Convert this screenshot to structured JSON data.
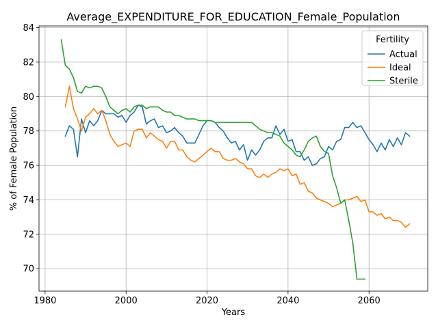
{
  "chart_data": {
    "type": "line",
    "title": "Average_EXPENDITURE_FOR_EDUCATION_Female_Population",
    "xlabel": "Years",
    "ylabel": "% of Female Population",
    "xlim": [
      1978.5,
      2074.5
    ],
    "ylim": [
      68.7,
      84.1
    ],
    "xticks": [
      1980,
      2000,
      2020,
      2040,
      2060
    ],
    "yticks": [
      70,
      72,
      74,
      76,
      78,
      80,
      82,
      84
    ],
    "grid": true,
    "legend": {
      "title": "Fertility",
      "placement": "top-right"
    },
    "series": [
      {
        "name": "Actual",
        "color": "#1f77b4",
        "x": [
          1985,
          1986,
          1987,
          1988,
          1989,
          1990,
          1991,
          1992,
          1993,
          1994,
          1995,
          1996,
          1997,
          1998,
          1999,
          2000,
          2001,
          2002,
          2003,
          2004,
          2005,
          2006,
          2007,
          2008,
          2009,
          2010,
          2011,
          2012,
          2013,
          2014,
          2015,
          2016,
          2017,
          2018,
          2019,
          2020,
          2021,
          2022,
          2023,
          2024,
          2025,
          2026,
          2027,
          2028,
          2029,
          2030,
          2031,
          2032,
          2033,
          2034,
          2035,
          2036,
          2037,
          2038,
          2039,
          2040,
          2041,
          2042,
          2043,
          2044,
          2045,
          2046,
          2047,
          2048,
          2049,
          2050,
          2051,
          2052,
          2053,
          2054,
          2055,
          2056,
          2057,
          2058,
          2059,
          2060,
          2061,
          2062,
          2063,
          2064,
          2065,
          2066,
          2067,
          2068,
          2069,
          2070
        ],
        "y": [
          77.7,
          78.3,
          78.1,
          76.5,
          78.7,
          77.9,
          78.6,
          78.3,
          78.6,
          79.2,
          79.0,
          79.0,
          79.0,
          78.8,
          78.9,
          78.5,
          78.9,
          79.1,
          79.5,
          79.4,
          78.4,
          78.6,
          78.7,
          78.2,
          78.3,
          77.9,
          78.0,
          78.2,
          77.9,
          77.7,
          77.3,
          77.3,
          77.3,
          77.8,
          78.3,
          78.6,
          78.6,
          78.5,
          78.2,
          78.0,
          77.6,
          77.3,
          77.4,
          76.9,
          77.2,
          76.3,
          76.9,
          76.6,
          76.9,
          77.4,
          77.6,
          77.6,
          78.3,
          77.8,
          78.1,
          77.4,
          77.5,
          76.8,
          76.8,
          76.3,
          76.5,
          76.0,
          76.1,
          76.4,
          76.5,
          77.1,
          76.9,
          77.4,
          77.5,
          78.2,
          78.2,
          78.5,
          78.2,
          78.3,
          77.9,
          77.5,
          77.2,
          76.8,
          77.3,
          76.9,
          77.5,
          77.1,
          77.6,
          77.2,
          77.9,
          77.7
        ]
      },
      {
        "name": "Ideal",
        "color": "#ff7f0e",
        "x": [
          1985,
          1986,
          1987,
          1988,
          1989,
          1990,
          1991,
          1992,
          1993,
          1994,
          1995,
          1996,
          1997,
          1998,
          1999,
          2000,
          2001,
          2002,
          2003,
          2004,
          2005,
          2006,
          2007,
          2008,
          2009,
          2010,
          2011,
          2012,
          2013,
          2014,
          2015,
          2016,
          2017,
          2018,
          2019,
          2020,
          2021,
          2022,
          2023,
          2024,
          2025,
          2026,
          2027,
          2028,
          2029,
          2030,
          2031,
          2032,
          2033,
          2034,
          2035,
          2036,
          2037,
          2038,
          2039,
          2040,
          2041,
          2042,
          2043,
          2044,
          2045,
          2046,
          2047,
          2048,
          2049,
          2050,
          2051,
          2052,
          2053,
          2054,
          2055,
          2056,
          2057,
          2058,
          2059,
          2060,
          2061,
          2062,
          2063,
          2064,
          2065,
          2066,
          2067,
          2068,
          2069,
          2070
        ],
        "y": [
          79.4,
          80.6,
          79.3,
          78.7,
          78.0,
          78.8,
          79.0,
          79.3,
          79.0,
          79.2,
          78.6,
          77.8,
          77.4,
          77.1,
          77.2,
          77.3,
          77.1,
          78.0,
          78.1,
          78.1,
          77.6,
          77.9,
          77.7,
          77.5,
          77.4,
          77.0,
          77.4,
          77.4,
          76.9,
          76.9,
          76.5,
          76.3,
          76.2,
          76.4,
          76.6,
          76.8,
          77.0,
          76.8,
          76.8,
          76.4,
          76.3,
          76.3,
          76.4,
          76.2,
          76.1,
          75.8,
          75.8,
          75.4,
          75.3,
          75.5,
          75.3,
          75.5,
          75.6,
          75.8,
          75.7,
          75.8,
          75.4,
          75.5,
          74.9,
          75.0,
          74.5,
          74.4,
          74.1,
          74.0,
          73.9,
          73.8,
          73.6,
          73.7,
          73.8,
          74.0,
          74.0,
          74.1,
          74.2,
          73.9,
          74.0,
          73.3,
          73.3,
          73.1,
          73.2,
          72.9,
          73.0,
          72.8,
          72.8,
          72.7,
          72.4,
          72.6
        ]
      },
      {
        "name": "Sterile",
        "color": "#2ca02c",
        "x": [
          1984,
          1985,
          1986,
          1987,
          1988,
          1989,
          1990,
          1991,
          1992,
          1993,
          1994,
          1995,
          1996,
          1997,
          1998,
          1999,
          2000,
          2001,
          2002,
          2003,
          2004,
          2005,
          2006,
          2007,
          2008,
          2009,
          2010,
          2011,
          2012,
          2013,
          2014,
          2015,
          2016,
          2017,
          2018,
          2019,
          2020,
          2021,
          2022,
          2023,
          2024,
          2025,
          2026,
          2027,
          2028,
          2029,
          2030,
          2031,
          2032,
          2033,
          2034,
          2035,
          2036,
          2037,
          2038,
          2039,
          2040,
          2041,
          2042,
          2043,
          2044,
          2045,
          2046,
          2047,
          2048,
          2049,
          2050,
          2051,
          2052,
          2053,
          2054,
          2055,
          2056,
          2057,
          2058,
          2059
        ],
        "y": [
          83.3,
          81.8,
          81.6,
          81.1,
          80.3,
          80.2,
          80.6,
          80.5,
          80.6,
          80.6,
          80.5,
          80.0,
          79.4,
          79.2,
          79.0,
          79.2,
          79.3,
          79.1,
          79.4,
          79.5,
          79.5,
          79.3,
          79.4,
          79.4,
          79.4,
          79.2,
          79.1,
          79.1,
          78.9,
          78.9,
          78.8,
          78.7,
          78.7,
          78.7,
          78.6,
          78.6,
          78.6,
          78.6,
          78.5,
          78.5,
          78.5,
          78.5,
          78.5,
          78.5,
          78.5,
          78.5,
          78.5,
          78.5,
          78.3,
          78.1,
          78.0,
          77.9,
          77.9,
          77.8,
          77.7,
          77.3,
          77.1,
          76.9,
          76.6,
          76.5,
          76.9,
          77.4,
          77.6,
          77.7,
          77.1,
          76.8,
          76.7,
          75.4,
          74.7,
          73.8,
          74.0,
          72.8,
          71.5,
          69.4,
          69.4,
          69.4
        ]
      }
    ]
  }
}
